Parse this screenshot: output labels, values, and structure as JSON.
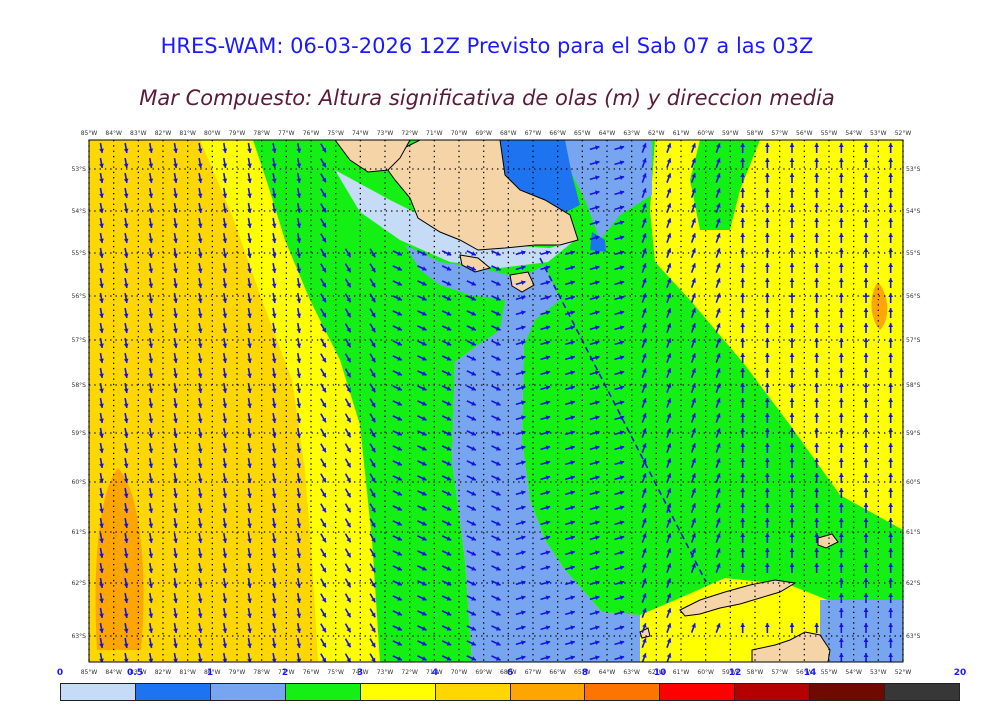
{
  "header": {
    "title": "HRES-WAM: 06-03-2026 12Z Previsto para el Sab 07 a las 03Z",
    "subtitle": "Mar Compuesto: Altura significativa de olas (m) y direccion media"
  },
  "map": {
    "lon_labels": [
      "85°W",
      "84°W",
      "83°W",
      "82°W",
      "81°W",
      "80°W",
      "79°W",
      "78°W",
      "77°W",
      "76°W",
      "75°W",
      "74°W",
      "73°W",
      "72°W",
      "71°W",
      "70°W",
      "69°W",
      "68°W",
      "67°W",
      "66°W",
      "65°W",
      "64°W",
      "63°W",
      "62°W",
      "61°W",
      "60°W",
      "59°W",
      "58°W",
      "57°W",
      "56°W",
      "55°W",
      "54°W",
      "53°W",
      "52°W"
    ],
    "lat_labels": [
      "53°S",
      "54°S",
      "55°S",
      "56°S",
      "57°S",
      "58°S",
      "59°S",
      "60°S",
      "61°S",
      "62°S",
      "63°S"
    ],
    "colors": {
      "land": "#f5d5a8",
      "wave_arrows": "#1414e0",
      "grid": "#000000"
    }
  },
  "colorbar": {
    "labels": [
      "0",
      "0.5",
      "1",
      "2",
      "3",
      "4",
      "6",
      "8",
      "10",
      "12",
      "14",
      "20"
    ],
    "colors": [
      "#c6dbf5",
      "#1e73f0",
      "#78a5f0",
      "#14f014",
      "#ffff00",
      "#ffd700",
      "#ffa500",
      "#ff7300",
      "#ff0000",
      "#b40000",
      "#6e0a00",
      "#373737"
    ]
  }
}
